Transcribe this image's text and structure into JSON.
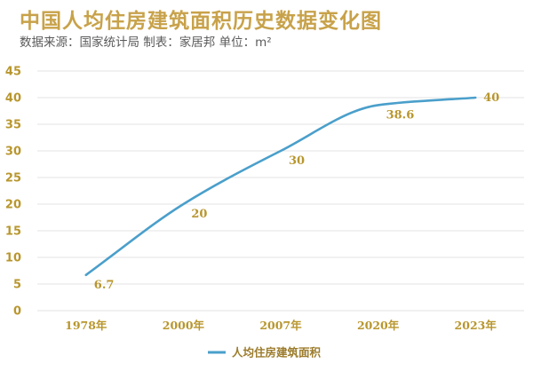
{
  "header": {
    "title": "中国人均住房建筑面积历史数据变化图",
    "subtitle": "数据来源：国家统计局 制表：家居邦 单位：m²"
  },
  "colors": {
    "title": "#c8a24a",
    "accent_text": "#b8962e",
    "line": "#4a9fcb",
    "grid": "#e3e3e3"
  },
  "chart_data": {
    "type": "line",
    "title": "中国人均住房建筑面积历史数据变化图",
    "categories": [
      "1978年",
      "2000年",
      "2007年",
      "2020年",
      "2023年"
    ],
    "series": [
      {
        "name": "人均住房建筑面积",
        "values": [
          6.7,
          20,
          30,
          38.6,
          40
        ],
        "data_labels": [
          "6.7",
          "20",
          "30",
          "38.6",
          "40"
        ]
      }
    ],
    "ylim": [
      0,
      45
    ],
    "yticks": [
      0,
      5,
      10,
      15,
      20,
      25,
      30,
      35,
      40,
      45
    ],
    "grid": true,
    "smooth": true,
    "legend": "bottom-center"
  }
}
